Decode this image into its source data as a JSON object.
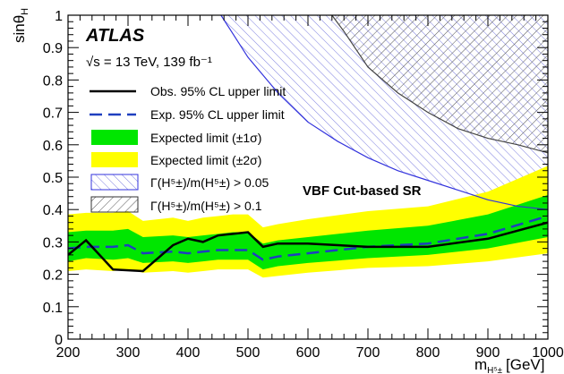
{
  "chart_data": {
    "type": "line",
    "experiment": "ATLAS",
    "energy": "√s = 13 TeV, 139 fb⁻¹",
    "region_label": "VBF Cut-based SR",
    "xlabel": "m",
    "xlabel_sub": "H⁵±",
    "xlabel_unit": "[GeV]",
    "ylabel": "sinθ",
    "ylabel_sub": "H",
    "xlim": [
      200,
      1000
    ],
    "ylim": [
      0,
      1
    ],
    "x_ticks": [
      200,
      300,
      400,
      500,
      600,
      700,
      800,
      900,
      1000
    ],
    "y_ticks": [
      0,
      0.1,
      0.2,
      0.3,
      0.4,
      0.5,
      0.6,
      0.7,
      0.8,
      0.9,
      1
    ],
    "x_tick_labels": [
      "200",
      "300",
      "400",
      "500",
      "600",
      "700",
      "800",
      "900",
      "1000"
    ],
    "y_tick_labels": [
      "0",
      "0.1",
      "0.2",
      "0.3",
      "0.4",
      "0.5",
      "0.6",
      "0.7",
      "0.8",
      "0.9",
      "1"
    ],
    "legend_position": "top-left",
    "legend": [
      {
        "key": "obs",
        "label": "Obs. 95% CL upper limit"
      },
      {
        "key": "exp",
        "label": "Exp. 95% CL upper limit"
      },
      {
        "key": "band1",
        "label": "Expected limit (±1σ)"
      },
      {
        "key": "band2",
        "label": "Expected limit (±2σ)"
      },
      {
        "key": "w005",
        "label": "Γ(H⁵±)/m(H⁵±) > 0.05"
      },
      {
        "key": "w01",
        "label": "Γ(H⁵±)/m(H⁵±) > 0.1"
      }
    ],
    "colors": {
      "observed": "#000000",
      "expected": "#1f3fbf",
      "band_1sigma": "#00e600",
      "band_2sigma": "#ffff00",
      "width_005": "#3333dd",
      "width_01": "#444444"
    },
    "series": [
      {
        "name": "Obs. 95% CL upper limit",
        "x": [
          200,
          230,
          275,
          325,
          375,
          400,
          425,
          450,
          475,
          500,
          525,
          550,
          600,
          700,
          800,
          900,
          1000
        ],
        "y": [
          0.26,
          0.305,
          0.215,
          0.21,
          0.29,
          0.31,
          0.3,
          0.32,
          0.325,
          0.33,
          0.285,
          0.295,
          0.295,
          0.285,
          0.285,
          0.31,
          0.36
        ]
      },
      {
        "name": "Exp. 95% CL upper limit",
        "x": [
          200,
          230,
          275,
          300,
          325,
          375,
          400,
          425,
          450,
          475,
          500,
          525,
          550,
          600,
          700,
          800,
          900,
          1000
        ],
        "y": [
          0.28,
          0.285,
          0.285,
          0.29,
          0.265,
          0.27,
          0.265,
          0.27,
          0.275,
          0.275,
          0.275,
          0.245,
          0.255,
          0.265,
          0.285,
          0.295,
          0.325,
          0.38
        ]
      },
      {
        "name": "Expected limit (±1σ)",
        "x": [
          200,
          230,
          275,
          300,
          325,
          375,
          400,
          425,
          450,
          475,
          500,
          525,
          550,
          600,
          700,
          800,
          900,
          1000
        ],
        "low": [
          0.24,
          0.25,
          0.245,
          0.25,
          0.235,
          0.24,
          0.235,
          0.24,
          0.245,
          0.245,
          0.245,
          0.215,
          0.225,
          0.235,
          0.25,
          0.26,
          0.28,
          0.315
        ],
        "high": [
          0.33,
          0.335,
          0.335,
          0.34,
          0.315,
          0.32,
          0.315,
          0.32,
          0.325,
          0.33,
          0.33,
          0.295,
          0.305,
          0.315,
          0.335,
          0.35,
          0.385,
          0.445
        ]
      },
      {
        "name": "Expected limit (±2σ)",
        "x": [
          200,
          230,
          275,
          300,
          325,
          375,
          400,
          425,
          450,
          475,
          500,
          525,
          550,
          600,
          700,
          800,
          900,
          1000
        ],
        "low": [
          0.21,
          0.215,
          0.21,
          0.215,
          0.205,
          0.21,
          0.205,
          0.21,
          0.215,
          0.215,
          0.215,
          0.19,
          0.195,
          0.205,
          0.22,
          0.225,
          0.24,
          0.265
        ],
        "high": [
          0.385,
          0.39,
          0.39,
          0.395,
          0.365,
          0.375,
          0.365,
          0.375,
          0.38,
          0.385,
          0.385,
          0.345,
          0.355,
          0.37,
          0.395,
          0.41,
          0.455,
          0.535
        ]
      },
      {
        "name": "Γ(H⁵±)/m(H⁵±) > 0.05",
        "x": [
          455,
          500,
          550,
          600,
          650,
          700,
          750,
          800,
          850,
          900,
          950,
          1000
        ],
        "y": [
          1.0,
          0.87,
          0.76,
          0.67,
          0.61,
          0.56,
          0.52,
          0.49,
          0.46,
          0.43,
          0.41,
          0.4
        ]
      },
      {
        "name": "Γ(H⁵±)/m(H⁵±) > 0.1",
        "x": [
          640,
          660,
          700,
          750,
          800,
          850,
          900,
          950,
          1000
        ],
        "y": [
          1.0,
          0.95,
          0.84,
          0.76,
          0.7,
          0.65,
          0.62,
          0.6,
          0.575
        ]
      }
    ]
  }
}
